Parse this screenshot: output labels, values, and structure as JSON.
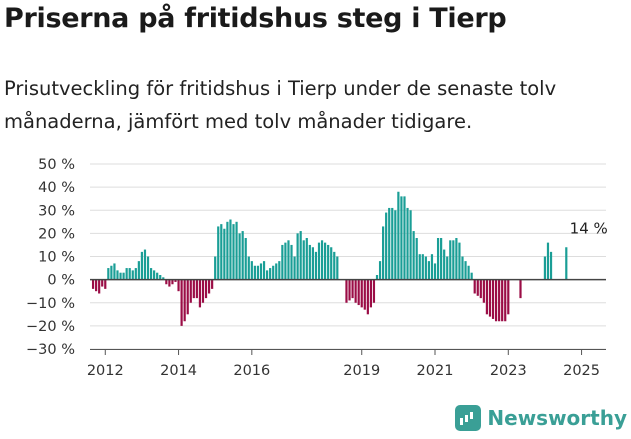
{
  "title": "Priserna på fritidshus steg i Tierp",
  "subtitle": "Prisutveckling för fritidshus i Tierp under de senaste tolv månaderna, jämfört med tolv månader tidigare.",
  "brand": {
    "name": "Newsworthy",
    "icon": "newsworthy-logo-icon"
  },
  "colors": {
    "positive": "#1a9e96",
    "negative": "#9b0d46",
    "grid": "#dddddd"
  },
  "chart_data": {
    "type": "bar",
    "ylim": [
      -30,
      50
    ],
    "yticks": [
      -30,
      -20,
      -10,
      0,
      10,
      20,
      30,
      40,
      50
    ],
    "ytick_labels": [
      "−30 %",
      "−20 %",
      "−10 %",
      "0 %",
      "10 %",
      "20 %",
      "30 %",
      "40 %",
      "50 %"
    ],
    "xlim": [
      2011.583,
      2025.667
    ],
    "xticks": [
      2012,
      2014,
      2016,
      2019,
      2021,
      2023,
      2025
    ],
    "xtick_labels": [
      "2012",
      "2014",
      "2016",
      "2019",
      "2021",
      "2023",
      "2025"
    ],
    "start": "2011-09",
    "annotation": {
      "text": "14 %",
      "date": "2025-04",
      "value": 14
    },
    "values": [
      -4,
      -5,
      -6,
      -3,
      -4,
      5,
      6,
      7,
      4,
      3,
      3,
      5,
      5,
      4,
      5,
      8,
      12,
      13,
      10,
      5,
      4,
      3,
      2,
      1,
      -2,
      -3,
      -2,
      -1,
      -5,
      -20,
      -18,
      -15,
      -10,
      -8,
      -8,
      -12,
      -10,
      -8,
      -6,
      -4,
      10,
      23,
      24,
      22,
      25,
      26,
      24,
      25,
      20,
      21,
      18,
      10,
      8,
      6,
      6,
      7,
      8,
      4,
      5,
      6,
      7,
      8,
      15,
      16,
      17,
      15,
      10,
      20,
      21,
      17,
      18,
      15,
      14,
      12,
      16,
      17,
      16,
      15,
      14,
      12,
      10,
      null,
      null,
      -10,
      -9,
      -8,
      -10,
      -11,
      -12,
      -13,
      -15,
      -12,
      -10,
      2,
      8,
      23,
      29,
      31,
      31,
      30,
      38,
      36,
      36,
      31,
      30,
      21,
      18,
      11,
      11,
      10,
      8,
      11,
      7,
      18,
      18,
      13,
      10,
      17,
      17,
      18,
      16,
      10,
      8,
      6,
      3,
      -6,
      -7,
      -8,
      -10,
      -15,
      -16,
      -17,
      -18,
      -18,
      -18,
      -18,
      -15,
      null,
      null,
      null,
      -8,
      null,
      null,
      null,
      null,
      null,
      null,
      null,
      10,
      16,
      12,
      null,
      null,
      null,
      null,
      14
    ]
  }
}
